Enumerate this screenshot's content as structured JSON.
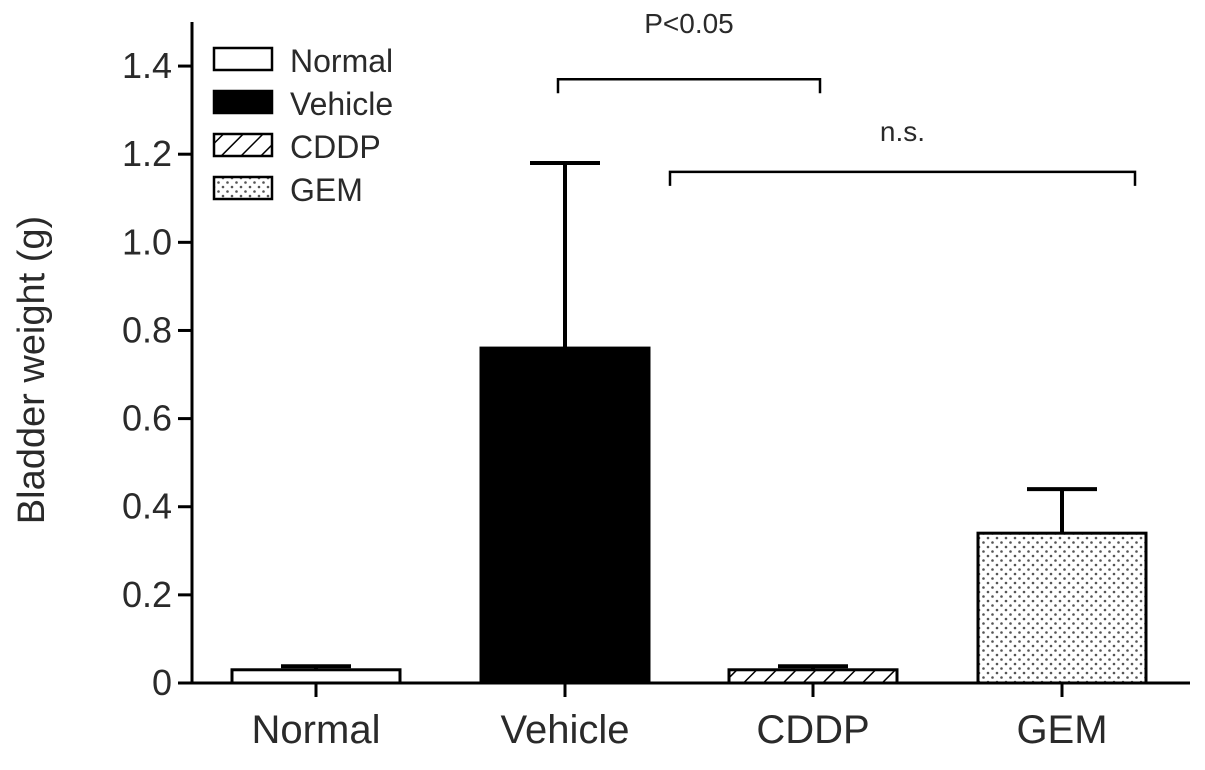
{
  "chart_data": {
    "type": "bar",
    "title": "",
    "xlabel": "",
    "ylabel": "Bladder weight (g)",
    "ylim": [
      0,
      1.5
    ],
    "yticks": [
      {
        "value": 0,
        "label": "0"
      },
      {
        "value": 0.2,
        "label": "0.2"
      },
      {
        "value": 0.4,
        "label": "0.4"
      },
      {
        "value": 0.6,
        "label": "0.6"
      },
      {
        "value": 0.8,
        "label": "0.8"
      },
      {
        "value": 1.0,
        "label": "1.0"
      },
      {
        "value": 1.2,
        "label": "1.2"
      },
      {
        "value": 1.4,
        "label": "1.4"
      }
    ],
    "categories": [
      "Normal",
      "Vehicle",
      "CDDP",
      "GEM"
    ],
    "values": [
      0.03,
      0.76,
      0.03,
      0.34
    ],
    "errors": [
      0.008,
      0.42,
      0.008,
      0.1
    ],
    "fills": [
      "white",
      "black",
      "hatch",
      "dots"
    ],
    "legend": {
      "position": "top-left",
      "entries": [
        {
          "label": "Normal",
          "fill": "white"
        },
        {
          "label": "Vehicle",
          "fill": "black"
        },
        {
          "label": "CDDP",
          "fill": "hatch"
        },
        {
          "label": "GEM",
          "fill": "dots"
        }
      ]
    },
    "annotations": [
      {
        "label": "P<0.05",
        "from": "Vehicle",
        "to": "CDDP",
        "y": 1.37
      },
      {
        "label": "n.s.",
        "from": "Vehicle-CDDP-gap",
        "to": "GEM",
        "y": 1.16
      }
    ],
    "grid": false
  }
}
